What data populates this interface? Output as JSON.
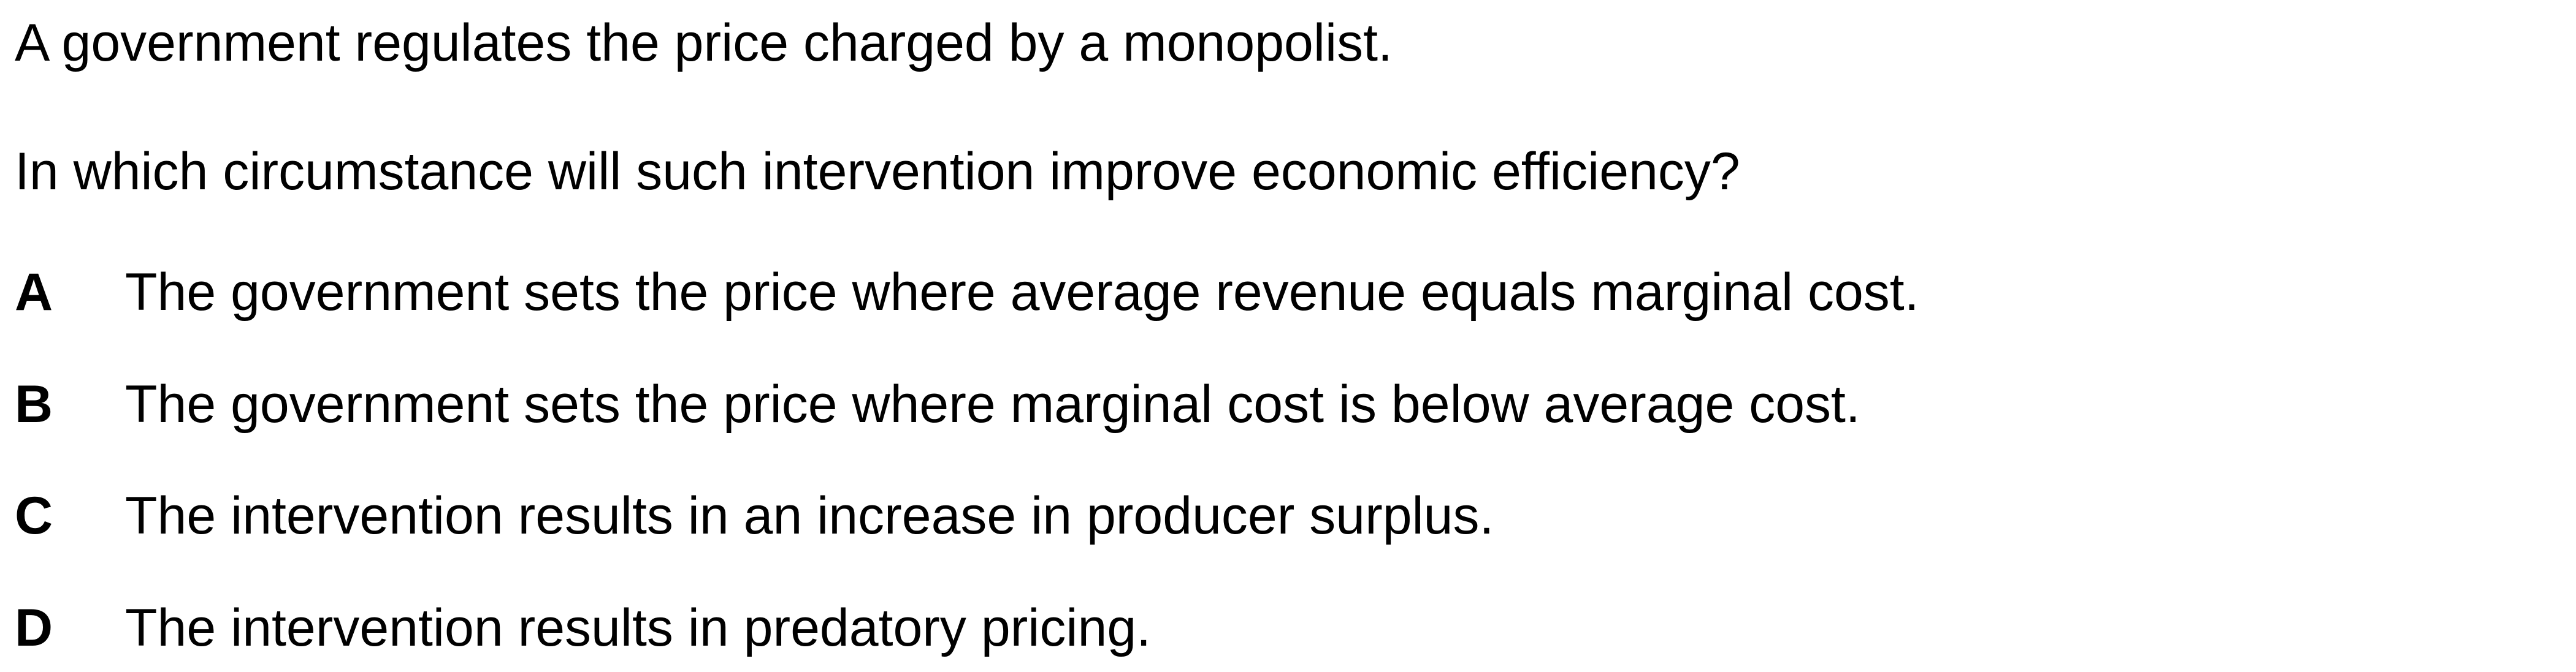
{
  "question": {
    "stem_lines": [
      "A government regulates the price charged by a monopolist.",
      "In which circumstance will such intervention improve economic efficiency?"
    ],
    "options": [
      {
        "letter": "A",
        "text": "The government sets the price where average revenue equals marginal cost."
      },
      {
        "letter": "B",
        "text": "The government sets the price where marginal cost is below average cost."
      },
      {
        "letter": "C",
        "text": "The intervention results in an increase in producer surplus."
      },
      {
        "letter": "D",
        "text": "The intervention results in predatory pricing."
      }
    ]
  }
}
